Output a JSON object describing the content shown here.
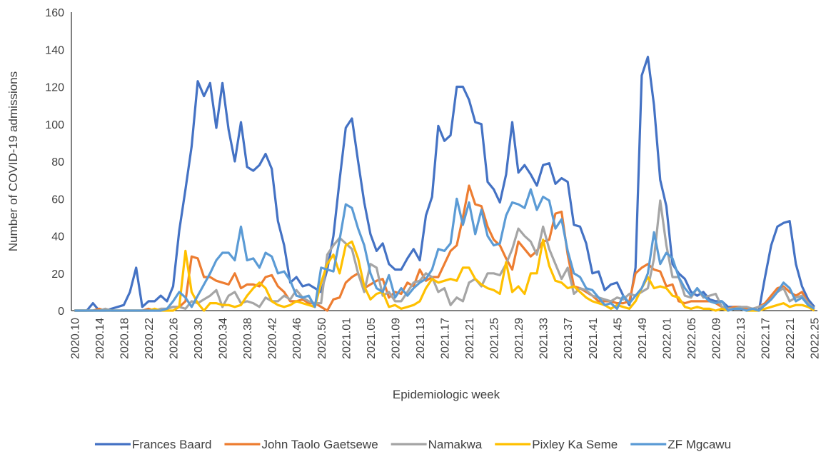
{
  "chart_data": {
    "type": "line",
    "xlabel": "Epidemiologic week",
    "ylabel": "Number of COVID-19 admissions",
    "categories": [
      "2020.10",
      null,
      null,
      null,
      "2020.14",
      null,
      null,
      null,
      "2020.18",
      null,
      null,
      null,
      "2020.22",
      null,
      null,
      null,
      "2020.26",
      null,
      null,
      null,
      "2020.30",
      null,
      null,
      null,
      "2020.34",
      null,
      null,
      null,
      "2020.38",
      null,
      null,
      null,
      "2020.42",
      null,
      null,
      null,
      "2020.46",
      null,
      null,
      null,
      "2020.50",
      null,
      null,
      null,
      "2021.01",
      null,
      null,
      null,
      "2021.05",
      null,
      null,
      null,
      "2021.09",
      null,
      null,
      null,
      "2021.13",
      null,
      null,
      null,
      "2021.17",
      null,
      null,
      null,
      "2021.21",
      null,
      null,
      null,
      "2021.25",
      null,
      null,
      null,
      "2021.29",
      null,
      null,
      null,
      "2021.33",
      null,
      null,
      null,
      "2021.37",
      null,
      null,
      null,
      "2021.41",
      null,
      null,
      null,
      "2021.45",
      null,
      null,
      null,
      "2021.49",
      null,
      null,
      null,
      "2022.01",
      null,
      null,
      null,
      "2022.05",
      null,
      null,
      null,
      "2022.09",
      null,
      null,
      null,
      "2022.13",
      null,
      null,
      null,
      "2022.17",
      null,
      null,
      null,
      "2022.21",
      null,
      null,
      null,
      "2022.25"
    ],
    "series": [
      {
        "name": "Frances Baard",
        "color": "#4472c4",
        "values": [
          0,
          0,
          0,
          4,
          0,
          0,
          1,
          2,
          3,
          10,
          23,
          2,
          5,
          5,
          8,
          5,
          13,
          43,
          65,
          88,
          123,
          115,
          122,
          98,
          122,
          97,
          80,
          101,
          77,
          75,
          78,
          84,
          76,
          48,
          35,
          15,
          18,
          13,
          14,
          12,
          10,
          22,
          40,
          70,
          98,
          103,
          80,
          58,
          41,
          32,
          36,
          25,
          22,
          22,
          28,
          33,
          27,
          51,
          61,
          99,
          91,
          94,
          120,
          120,
          113,
          101,
          100,
          69,
          65,
          58,
          73,
          101,
          74,
          78,
          73,
          67,
          78,
          79,
          68,
          71,
          69,
          46,
          45,
          36,
          20,
          21,
          11,
          14,
          15,
          8,
          3,
          23,
          126,
          136,
          110,
          70,
          56,
          25,
          20,
          17,
          10,
          8,
          10,
          6,
          5,
          5,
          2,
          2,
          2,
          1,
          1,
          0,
          18,
          35,
          45,
          47,
          48,
          25,
          13,
          6,
          2
        ]
      },
      {
        "name": "John Taolo Gaetsewe",
        "color": "#ed7d31",
        "values": [
          0,
          0,
          0,
          0,
          1,
          0,
          0,
          0,
          0,
          0,
          0,
          0,
          1,
          0,
          0,
          1,
          2,
          2,
          5,
          29,
          28,
          18,
          18,
          16,
          15,
          14,
          20,
          12,
          14,
          14,
          13,
          18,
          19,
          13,
          10,
          5,
          5,
          6,
          4,
          4,
          2,
          0,
          6,
          7,
          15,
          18,
          20,
          12,
          14,
          16,
          17,
          7,
          10,
          9,
          15,
          13,
          22,
          16,
          18,
          18,
          25,
          32,
          35,
          50,
          67,
          57,
          56,
          45,
          38,
          35,
          28,
          22,
          37,
          33,
          29,
          32,
          37,
          38,
          52,
          53,
          30,
          13,
          12,
          10,
          8,
          5,
          5,
          5,
          4,
          4,
          5,
          20,
          23,
          25,
          22,
          21,
          13,
          14,
          5,
          4,
          5,
          5,
          5,
          5,
          4,
          2,
          1,
          2,
          2,
          1,
          1,
          2,
          4,
          8,
          12,
          13,
          10,
          8,
          10,
          4,
          1
        ]
      },
      {
        "name": "Namakwa",
        "color": "#a5a5a5",
        "values": [
          0,
          0,
          0,
          0,
          0,
          1,
          0,
          0,
          0,
          0,
          0,
          0,
          0,
          0,
          1,
          1,
          2,
          2,
          1,
          5,
          4,
          6,
          8,
          11,
          2,
          8,
          10,
          4,
          5,
          4,
          2,
          7,
          5,
          5,
          8,
          6,
          11,
          7,
          5,
          4,
          4,
          30,
          35,
          39,
          36,
          33,
          20,
          10,
          25,
          23,
          8,
          10,
          5,
          5,
          10,
          15,
          16,
          20,
          18,
          10,
          12,
          3,
          7,
          5,
          15,
          17,
          13,
          20,
          20,
          19,
          25,
          33,
          44,
          40,
          37,
          30,
          45,
          33,
          25,
          17,
          23,
          9,
          12,
          11,
          8,
          7,
          6,
          5,
          7,
          6,
          9,
          8,
          10,
          12,
          28,
          59,
          35,
          18,
          18,
          8,
          7,
          12,
          7,
          8,
          9,
          2,
          1,
          1,
          2,
          2,
          1,
          2,
          3,
          6,
          10,
          12,
          5,
          7,
          8,
          4,
          1
        ]
      },
      {
        "name": "Pixley Ka Seme",
        "color": "#ffc000",
        "values": [
          0,
          0,
          0,
          0,
          0,
          0,
          0,
          0,
          0,
          0,
          0,
          0,
          0,
          1,
          0,
          0,
          0,
          2,
          32,
          10,
          4,
          0,
          4,
          4,
          3,
          3,
          2,
          3,
          8,
          12,
          15,
          12,
          5,
          3,
          2,
          3,
          5,
          4,
          3,
          2,
          15,
          25,
          30,
          20,
          35,
          37,
          28,
          13,
          6,
          9,
          10,
          2,
          3,
          1,
          2,
          3,
          5,
          12,
          17,
          15,
          16,
          17,
          16,
          23,
          23,
          17,
          14,
          12,
          11,
          9,
          26,
          10,
          13,
          9,
          20,
          20,
          38,
          24,
          16,
          15,
          12,
          13,
          10,
          7,
          5,
          4,
          3,
          1,
          3,
          2,
          1,
          5,
          12,
          18,
          12,
          13,
          12,
          8,
          7,
          2,
          1,
          2,
          1,
          1,
          0,
          1,
          0,
          1,
          1,
          0,
          0,
          0,
          1,
          2,
          3,
          4,
          2,
          3,
          3,
          2,
          0
        ]
      },
      {
        "name": "ZF Mgcawu",
        "color": "#5b9bd5",
        "values": [
          0,
          0,
          0,
          0,
          0,
          0,
          0,
          0,
          0,
          0,
          0,
          0,
          0,
          0,
          0,
          1,
          5,
          10,
          7,
          2,
          8,
          14,
          20,
          27,
          31,
          31,
          27,
          45,
          27,
          28,
          23,
          31,
          29,
          20,
          21,
          16,
          8,
          7,
          8,
          2,
          23,
          22,
          21,
          38,
          57,
          55,
          44,
          35,
          20,
          12,
          10,
          19,
          7,
          12,
          8,
          12,
          15,
          17,
          22,
          33,
          32,
          36,
          60,
          46,
          58,
          41,
          54,
          40,
          35,
          36,
          51,
          58,
          57,
          55,
          65,
          54,
          61,
          59,
          44,
          49,
          32,
          20,
          18,
          12,
          11,
          7,
          3,
          4,
          1,
          8,
          4,
          8,
          12,
          20,
          42,
          25,
          31,
          28,
          18,
          12,
          8,
          12,
          8,
          5,
          4,
          5,
          0,
          1,
          1,
          0,
          1,
          0,
          3,
          6,
          10,
          15,
          12,
          5,
          7,
          3,
          1
        ]
      }
    ],
    "ylim": [
      0,
      160
    ],
    "yticks": [
      0,
      20,
      40,
      60,
      80,
      100,
      120,
      140,
      160
    ],
    "grid": false,
    "legend": "bottom"
  }
}
